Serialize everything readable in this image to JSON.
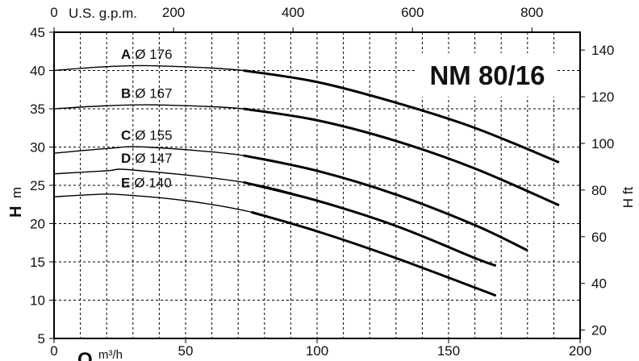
{
  "chart_data": {
    "type": "line",
    "title": "NM 80/16",
    "xlabel_symbol": "Q",
    "xlabel_unit": "m³/h",
    "xlabel_top": "U.S. g.p.m.",
    "ylabel_symbol": "H",
    "ylabel_unit": "m",
    "ylabel_right": "H ft",
    "xlim": [
      0,
      200
    ],
    "ylim": [
      5,
      45
    ],
    "x_ticks": [
      "0",
      "50",
      "100",
      "150",
      "200"
    ],
    "y_ticks": [
      "5",
      "10",
      "15",
      "20",
      "25",
      "30",
      "35",
      "40",
      "45"
    ],
    "top_ticks": [
      "0",
      "200",
      "400",
      "600",
      "800"
    ],
    "right_ticks": [
      "20",
      "40",
      "60",
      "80",
      "100",
      "120",
      "140"
    ],
    "grid": true,
    "series": [
      {
        "name": "A",
        "diameter": "Ø 176",
        "x": [
          0,
          20,
          40,
          72,
          100,
          130,
          160,
          192
        ],
        "y": [
          40.0,
          40.5,
          40.6,
          40.0,
          38.5,
          35.8,
          32.5,
          28.0
        ]
      },
      {
        "name": "B",
        "diameter": "Ø 167",
        "x": [
          0,
          20,
          40,
          72,
          100,
          130,
          160,
          192
        ],
        "y": [
          35.0,
          35.4,
          35.5,
          35.0,
          33.5,
          30.8,
          27.2,
          22.4
        ]
      },
      {
        "name": "C",
        "diameter": "Ø 155",
        "x": [
          0,
          20,
          35,
          72,
          100,
          130,
          160,
          180
        ],
        "y": [
          29.2,
          29.8,
          30.0,
          28.9,
          26.9,
          23.8,
          19.8,
          16.5
        ]
      },
      {
        "name": "D",
        "diameter": "Ø 147",
        "x": [
          0,
          20,
          30,
          72,
          100,
          130,
          160,
          168
        ],
        "y": [
          26.5,
          26.9,
          27.0,
          25.4,
          23.0,
          19.7,
          15.5,
          14.5
        ]
      },
      {
        "name": "E",
        "diameter": "Ø 140",
        "x": [
          0,
          15,
          25,
          50,
          75,
          100,
          130,
          168
        ],
        "y": [
          23.5,
          23.8,
          23.8,
          23.0,
          21.5,
          19.0,
          15.5,
          10.6
        ]
      }
    ]
  }
}
